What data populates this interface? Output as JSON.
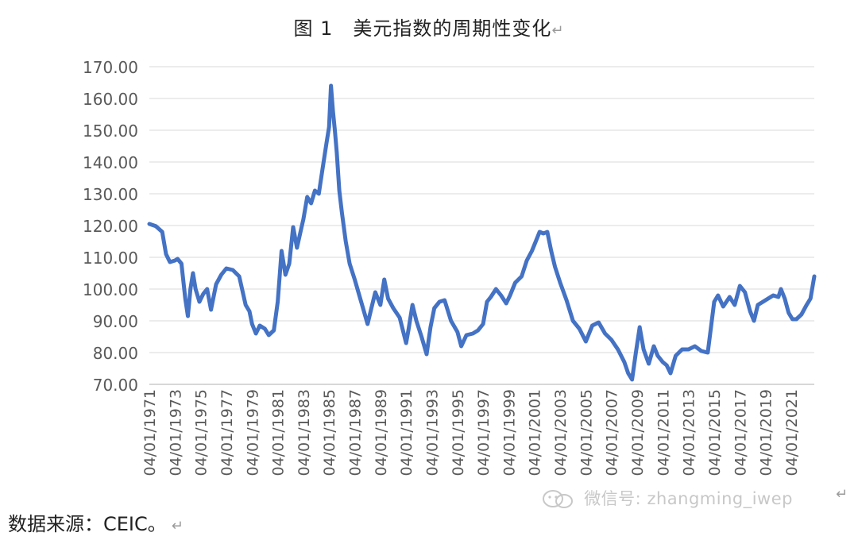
{
  "chart_data": {
    "type": "line",
    "title": "图 1　美元指数的周期性变化",
    "xlabel": "",
    "ylabel": "",
    "ylim": [
      70,
      170
    ],
    "yticks": [
      "70.00",
      "80.00",
      "90.00",
      "100.00",
      "110.00",
      "120.00",
      "130.00",
      "140.00",
      "150.00",
      "160.00",
      "170.00"
    ],
    "xticks": [
      "04/01/1971",
      "04/01/1973",
      "04/01/1975",
      "04/01/1977",
      "04/01/1979",
      "04/01/1981",
      "04/01/1983",
      "04/01/1985",
      "04/01/1987",
      "04/01/1989",
      "04/01/1991",
      "04/01/1993",
      "04/01/1995",
      "04/01/1997",
      "04/01/1999",
      "04/01/2001",
      "04/01/2003",
      "04/01/2005",
      "04/01/2007",
      "04/01/2009",
      "04/01/2011",
      "04/01/2013",
      "04/01/2015",
      "04/01/2017",
      "04/01/2019",
      "04/01/2021"
    ],
    "xrange": [
      1971.0,
      2022.8
    ],
    "grid": true,
    "legend": "none",
    "series_color": "#4472C4",
    "series": [
      {
        "x": [
          1971.0,
          1971.5,
          1972.0,
          1972.3,
          1972.6,
          1973.0,
          1973.2,
          1973.5,
          1973.8,
          1974.0,
          1974.2,
          1974.4,
          1974.6,
          1974.9,
          1975.2,
          1975.5,
          1975.8,
          1976.2,
          1976.6,
          1977.0,
          1977.5,
          1978.0,
          1978.5,
          1978.8,
          1979.0,
          1979.3,
          1979.6,
          1980.0,
          1980.3,
          1980.7,
          1981.0,
          1981.3,
          1981.6,
          1981.9,
          1982.2,
          1982.5,
          1982.8,
          1983.0,
          1983.3,
          1983.6,
          1983.9,
          1984.2,
          1984.5,
          1984.8,
          1985.0,
          1985.15,
          1985.3,
          1985.45,
          1985.6,
          1985.8,
          1986.0,
          1986.3,
          1986.6,
          1987.0,
          1987.5,
          1988.0,
          1988.3,
          1988.6,
          1989.0,
          1989.3,
          1989.6,
          1990.0,
          1990.5,
          1991.0,
          1991.2,
          1991.5,
          1991.8,
          1992.2,
          1992.6,
          1992.9,
          1993.2,
          1993.6,
          1994.0,
          1994.5,
          1995.0,
          1995.3,
          1995.7,
          1996.2,
          1996.6,
          1997.0,
          1997.3,
          1997.6,
          1998.0,
          1998.4,
          1998.8,
          1999.1,
          1999.5,
          2000.0,
          2000.4,
          2000.8,
          2001.1,
          2001.4,
          2001.7,
          2002.0,
          2002.3,
          2002.6,
          2003.0,
          2003.5,
          2004.0,
          2004.5,
          2005.0,
          2005.5,
          2006.0,
          2006.5,
          2007.0,
          2007.5,
          2008.0,
          2008.3,
          2008.6,
          2008.9,
          2009.2,
          2009.5,
          2009.9,
          2010.3,
          2010.6,
          2011.0,
          2011.3,
          2011.6,
          2012.0,
          2012.5,
          2013.0,
          2013.5,
          2014.0,
          2014.5,
          2015.0,
          2015.3,
          2015.7,
          2016.2,
          2016.6,
          2017.0,
          2017.4,
          2017.8,
          2018.1,
          2018.4,
          2018.8,
          2019.2,
          2019.6,
          2020.0,
          2020.2,
          2020.5,
          2020.8,
          2021.1,
          2021.4,
          2021.8,
          2022.2,
          2022.5,
          2022.8
        ],
        "y": [
          120.5,
          119.8,
          118.0,
          111.0,
          108.5,
          109.0,
          109.5,
          108.0,
          97.0,
          91.5,
          100.0,
          105.0,
          100.0,
          96.0,
          98.5,
          100.0,
          93.5,
          101.5,
          104.5,
          106.5,
          106.0,
          104.0,
          95.0,
          93.0,
          89.0,
          86.0,
          88.5,
          87.5,
          85.5,
          87.0,
          96.0,
          112.0,
          104.5,
          108.0,
          119.5,
          113.0,
          118.5,
          122.0,
          129.0,
          127.0,
          131.0,
          130.0,
          138.0,
          146.0,
          151.0,
          164.0,
          156.0,
          150.0,
          143.0,
          131.0,
          124.0,
          115.0,
          108.0,
          103.0,
          96.0,
          89.0,
          94.0,
          99.0,
          95.0,
          103.0,
          97.0,
          94.0,
          91.0,
          83.0,
          87.5,
          95.0,
          90.0,
          85.0,
          79.5,
          88.0,
          94.0,
          96.0,
          96.5,
          90.0,
          86.5,
          82.0,
          85.5,
          86.0,
          87.0,
          89.0,
          96.0,
          97.5,
          100.0,
          98.0,
          95.5,
          98.0,
          102.0,
          104.0,
          109.0,
          112.0,
          115.0,
          118.0,
          117.5,
          118.0,
          112.0,
          107.0,
          102.0,
          96.5,
          90.0,
          87.5,
          83.5,
          88.5,
          89.5,
          86.0,
          84.0,
          81.0,
          77.0,
          73.5,
          71.5,
          80.0,
          88.0,
          81.0,
          76.5,
          82.0,
          79.0,
          77.0,
          76.0,
          73.5,
          79.0,
          81.0,
          81.0,
          82.0,
          80.5,
          80.0,
          96.0,
          98.0,
          94.5,
          97.5,
          95.0,
          101.0,
          99.0,
          93.0,
          90.0,
          95.0,
          96.0,
          97.0,
          98.0,
          97.5,
          100.0,
          97.0,
          92.5,
          90.5,
          90.5,
          92.0,
          95.0,
          97.0,
          104.0
        ]
      }
    ]
  },
  "source_note": "数据来源：CEIC。",
  "watermark": "微信号: zhangming_iwep",
  "paragraph_mark": "↵"
}
